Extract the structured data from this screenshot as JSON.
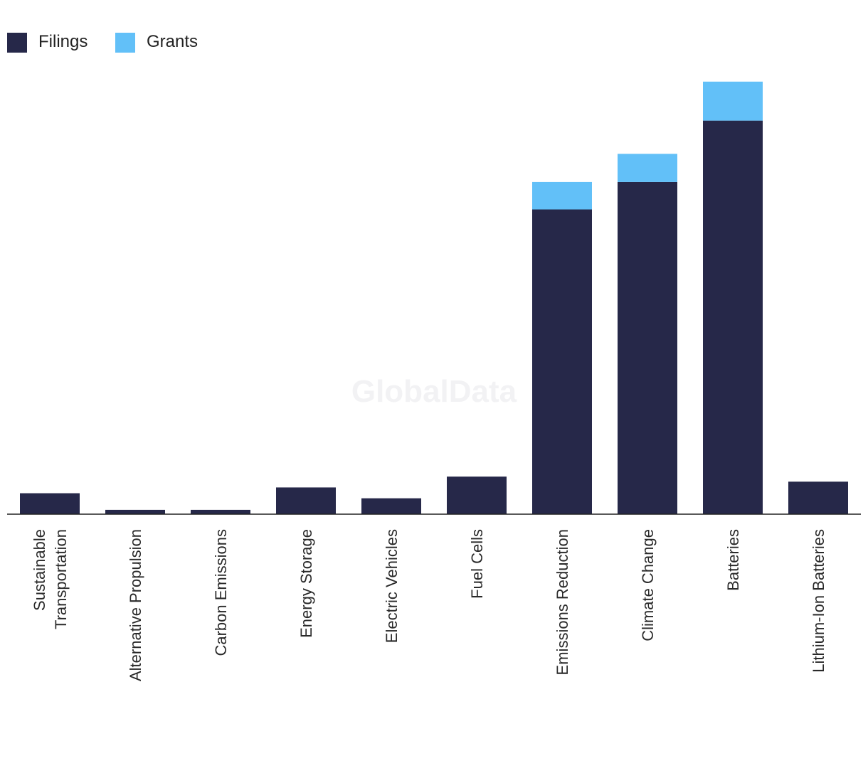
{
  "colors": {
    "filings": "#262849",
    "grants": "#62c0f8",
    "axis": "#222222"
  },
  "watermark": "GlobalData",
  "chart_data": {
    "type": "bar",
    "stacked": true,
    "categories": [
      [
        "Sustainable",
        "Transportation"
      ],
      [
        "Alternative Propulsion"
      ],
      [
        "Carbon Emissions"
      ],
      [
        "Energy Storage"
      ],
      [
        "Electric Vehicles"
      ],
      [
        "Fuel Cells"
      ],
      [
        "Emissions Reduction"
      ],
      [
        "Climate Change"
      ],
      [
        "Batteries"
      ],
      [
        "Lithium-Ion Batteries"
      ]
    ],
    "series": [
      {
        "name": "Filings",
        "color": "#262849",
        "values": [
          29,
          6,
          6,
          37,
          22,
          52,
          422,
          460,
          545,
          45
        ]
      },
      {
        "name": "Grants",
        "color": "#62c0f8",
        "values": [
          0,
          0,
          0,
          0,
          0,
          0,
          38,
          39,
          54,
          0
        ]
      }
    ],
    "ylim": [
      0,
      650
    ],
    "grid": false,
    "legend": "top-left",
    "title": "",
    "xlabel": "",
    "ylabel": ""
  }
}
